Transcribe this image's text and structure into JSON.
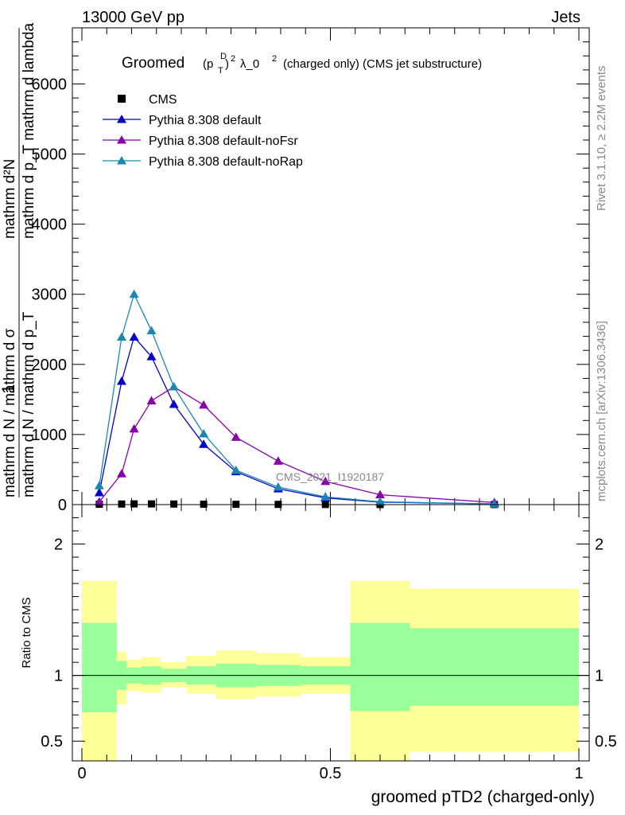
{
  "header": {
    "left": "13000 GeV pp",
    "right": "Jets"
  },
  "title": {
    "prefix": "Groomed",
    "p": "(p",
    "sup_D": "D",
    "sub_T": "T",
    "close": ")",
    "sup_2": "2",
    "lambda": "λ_0",
    "lam_sup": "2",
    "suffix": "(charged only) (CMS jet substructure)"
  },
  "side_labels": {
    "rivet": "Rivet 3.1.10, ≥ 2.2M events",
    "mcplots": "mcplots.cern.ch [arXiv:1306.3436]"
  },
  "watermark": "CMS_2021_I1920187",
  "main_ylabel": {
    "num_one": "1",
    "den": "mathrm d N / mathrm dσ mathrm d p_T mathrm d lambda",
    "num2": "mathrm d²N",
    "raw_a": "mathrm d²N",
    "raw_b": "mathrm d p_T mathrm d lambda",
    "raw_c": "mathrm d N / mathrm d p_T",
    "raw_d": "1",
    "raw_e": "mathrm d N / mathrm d σ"
  },
  "ratio_ylabel": "Ratio to CMS",
  "xlabel": "groomed pTD2 (charged-only)",
  "chart_data": {
    "type": "line",
    "main": {
      "ylim": [
        0,
        6800
      ],
      "xlim": [
        -0.02,
        1.0
      ],
      "yticks": [
        {
          "v": 0,
          "label": "0"
        },
        {
          "v": 1000,
          "label": "1000"
        },
        {
          "v": 2000,
          "label": "2000"
        },
        {
          "v": 3000,
          "label": "3000"
        },
        {
          "v": 4000,
          "label": "4000"
        },
        {
          "v": 5000,
          "label": "5000"
        },
        {
          "v": 6000,
          "label": "6000"
        }
      ],
      "legend_position": "top-left",
      "series": [
        {
          "name": "CMS",
          "color": "#000000",
          "marker": "square",
          "x": [
            0.035,
            0.08,
            0.105,
            0.14,
            0.185,
            0.245,
            0.31,
            0.395,
            0.49,
            0.6,
            0.83
          ],
          "y": [
            5,
            8,
            10,
            10,
            8,
            6,
            4,
            3,
            2,
            1,
            1
          ]
        },
        {
          "name": "Pythia 8.308 default",
          "color": "#0000cc",
          "marker": "triangle",
          "x": [
            0.035,
            0.08,
            0.105,
            0.14,
            0.185,
            0.245,
            0.31,
            0.395,
            0.49,
            0.6,
            0.83
          ],
          "y": [
            170,
            1760,
            2390,
            2110,
            1430,
            860,
            470,
            225,
            95,
            35,
            10
          ]
        },
        {
          "name": "Pythia 8.308 default-noFsr",
          "color": "#8800aa",
          "marker": "triangle",
          "x": [
            0.035,
            0.08,
            0.105,
            0.14,
            0.185,
            0.245,
            0.31,
            0.395,
            0.49,
            0.6,
            0.83
          ],
          "y": [
            40,
            440,
            1080,
            1480,
            1680,
            1420,
            960,
            620,
            330,
            140,
            30
          ]
        },
        {
          "name": "Pythia 8.308 default-noRap",
          "color": "#1a88b0",
          "marker": "triangle",
          "x": [
            0.035,
            0.08,
            0.105,
            0.14,
            0.185,
            0.245,
            0.31,
            0.395,
            0.49,
            0.6,
            0.83
          ],
          "y": [
            270,
            2390,
            3000,
            2480,
            1680,
            1010,
            490,
            250,
            110,
            40,
            10
          ]
        }
      ]
    },
    "ratio": {
      "ylim": [
        0.35,
        2.3
      ],
      "yticks": [
        {
          "v": 0.5,
          "label": "0.5"
        },
        {
          "v": 1,
          "label": "1"
        },
        {
          "v": 2,
          "label": "2"
        }
      ],
      "green_color": "#99ff99",
      "yellow_color": "#ffff99",
      "bins": [
        {
          "lo": 0.0,
          "hi": 0.07,
          "g": [
            0.72,
            1.4
          ],
          "y": [
            0.35,
            1.72
          ]
        },
        {
          "lo": 0.07,
          "hi": 0.09,
          "g": [
            0.89,
            1.11
          ],
          "y": [
            0.78,
            1.18
          ]
        },
        {
          "lo": 0.09,
          "hi": 0.12,
          "g": [
            0.94,
            1.06
          ],
          "y": [
            0.88,
            1.12
          ]
        },
        {
          "lo": 0.12,
          "hi": 0.16,
          "g": [
            0.93,
            1.07
          ],
          "y": [
            0.87,
            1.14
          ]
        },
        {
          "lo": 0.16,
          "hi": 0.21,
          "g": [
            0.95,
            1.05
          ],
          "y": [
            0.91,
            1.1
          ]
        },
        {
          "lo": 0.21,
          "hi": 0.27,
          "g": [
            0.93,
            1.07
          ],
          "y": [
            0.86,
            1.15
          ]
        },
        {
          "lo": 0.27,
          "hi": 0.35,
          "g": [
            0.91,
            1.09
          ],
          "y": [
            0.82,
            1.19
          ]
        },
        {
          "lo": 0.35,
          "hi": 0.44,
          "g": [
            0.92,
            1.08
          ],
          "y": [
            0.84,
            1.17
          ]
        },
        {
          "lo": 0.44,
          "hi": 0.54,
          "g": [
            0.93,
            1.07
          ],
          "y": [
            0.86,
            1.14
          ]
        },
        {
          "lo": 0.54,
          "hi": 0.66,
          "g": [
            0.73,
            1.4
          ],
          "y": [
            0.35,
            1.72
          ]
        },
        {
          "lo": 0.66,
          "hi": 1.0,
          "g": [
            0.77,
            1.36
          ],
          "y": [
            0.42,
            1.66
          ]
        }
      ]
    },
    "xticks": [
      {
        "v": 0,
        "label": "0"
      },
      {
        "v": 0.5,
        "label": "0.5"
      },
      {
        "v": 1,
        "label": "1"
      }
    ]
  }
}
